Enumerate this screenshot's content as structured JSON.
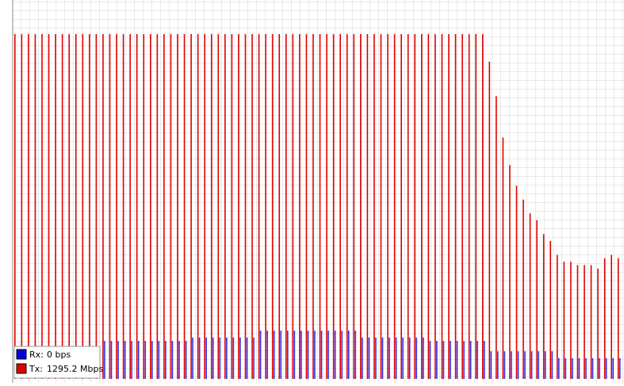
{
  "chart_data": {
    "type": "bar",
    "ylim": [
      0,
      100
    ],
    "series": [
      {
        "name": "Tx:",
        "current": "1295.2 Mbps",
        "color": "#e00000",
        "values": [
          100,
          100,
          100,
          100,
          100,
          100,
          100,
          100,
          100,
          100,
          100,
          100,
          100,
          100,
          100,
          100,
          100,
          100,
          100,
          100,
          100,
          100,
          100,
          100,
          100,
          100,
          100,
          100,
          100,
          100,
          100,
          100,
          100,
          100,
          100,
          100,
          100,
          100,
          100,
          100,
          100,
          100,
          100,
          100,
          100,
          100,
          100,
          100,
          100,
          100,
          100,
          100,
          100,
          100,
          100,
          100,
          100,
          100,
          100,
          100,
          100,
          100,
          100,
          100,
          100,
          100,
          100,
          100,
          100,
          100,
          92,
          82,
          70,
          62,
          56,
          52,
          48,
          46,
          42,
          40,
          36,
          34,
          34,
          33,
          33,
          33,
          32,
          35,
          36,
          35
        ]
      },
      {
        "name": "Rx:",
        "current": "0 bps",
        "color": "#0000e0",
        "values": [
          0,
          0,
          0,
          0,
          0,
          0,
          0,
          0,
          0,
          0,
          0,
          0,
          0,
          11,
          11,
          11,
          11,
          11,
          11,
          11,
          11,
          11,
          11,
          11,
          11,
          11,
          12,
          12,
          12,
          12,
          12,
          12,
          12,
          12,
          12,
          12,
          14,
          14,
          14,
          14,
          14,
          14,
          14,
          14,
          14,
          14,
          14,
          14,
          14,
          14,
          14,
          12,
          12,
          12,
          12,
          12,
          12,
          12,
          12,
          12,
          12,
          11,
          11,
          11,
          11,
          11,
          11,
          11,
          11,
          11,
          8,
          8,
          8,
          8,
          8,
          8,
          8,
          8,
          8,
          8,
          6,
          6,
          6,
          6,
          6,
          6,
          6,
          6,
          6,
          6
        ]
      }
    ]
  }
}
